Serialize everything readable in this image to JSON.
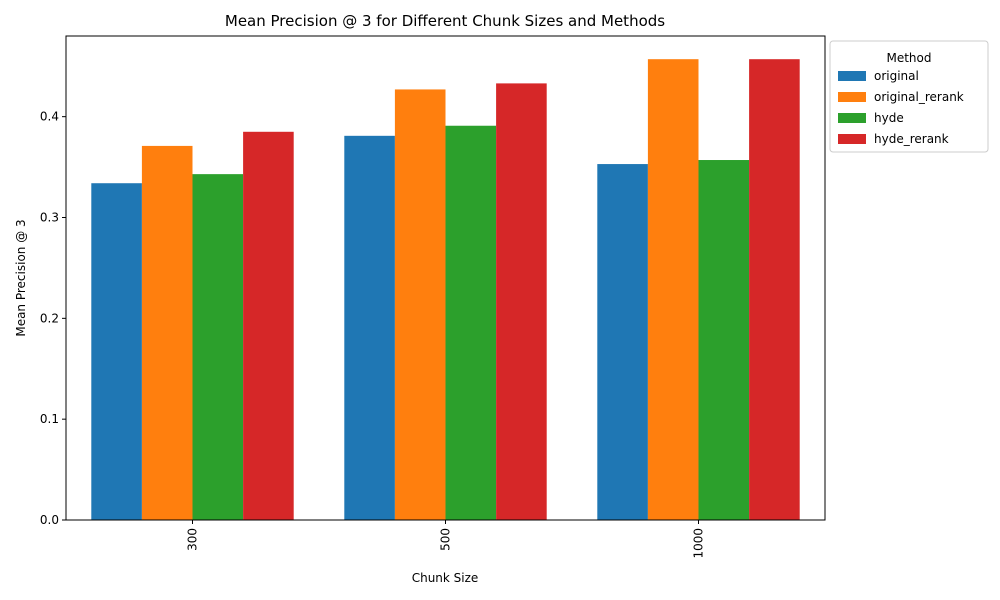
{
  "chart_data": {
    "type": "bar",
    "title": "Mean Precision @ 3 for Different Chunk Sizes and Methods",
    "xlabel": "Chunk Size",
    "ylabel": "Mean Precision @ 3",
    "categories": [
      "300",
      "500",
      "1000"
    ],
    "ylim": [
      0,
      0.48
    ],
    "yticks": [
      0.0,
      0.1,
      0.2,
      0.3,
      0.4
    ],
    "ytick_labels": [
      "0.0",
      "0.1",
      "0.2",
      "0.3",
      "0.4"
    ],
    "legend_title": "Method",
    "legend_position": "upper-right-outside",
    "grid": false,
    "series": [
      {
        "name": "original",
        "color": "#1f77b4",
        "values": [
          0.334,
          0.381,
          0.353
        ]
      },
      {
        "name": "original_rerank",
        "color": "#ff7f0e",
        "values": [
          0.371,
          0.427,
          0.457
        ]
      },
      {
        "name": "hyde",
        "color": "#2ca02c",
        "values": [
          0.343,
          0.391,
          0.357
        ]
      },
      {
        "name": "hyde_rerank",
        "color": "#d62728",
        "values": [
          0.385,
          0.433,
          0.457
        ]
      }
    ]
  }
}
